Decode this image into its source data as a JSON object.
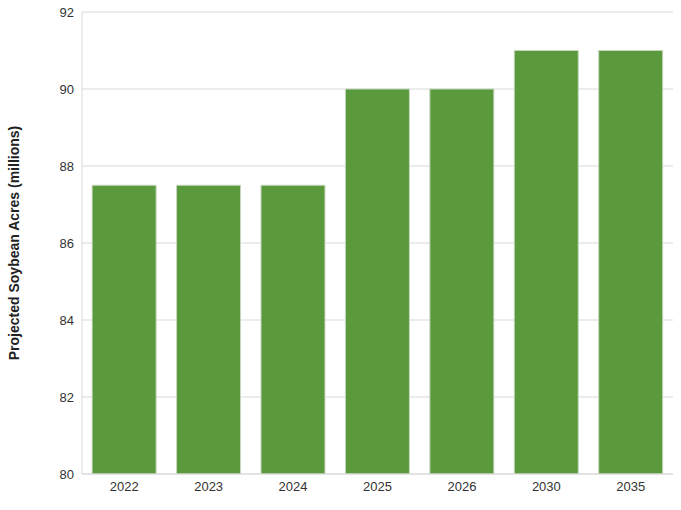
{
  "chart_data": {
    "type": "bar",
    "y_label": "Projected Soybean Acres (millions)",
    "categories": [
      "2022",
      "2023",
      "2024",
      "2025",
      "2026",
      "2030",
      "2035"
    ],
    "values": [
      87.5,
      87.5,
      87.5,
      90,
      90,
      91,
      91
    ],
    "color": "#5b9a3c",
    "ylim": [
      80,
      92
    ],
    "yticks": [
      80,
      82,
      84,
      86,
      88,
      90,
      92
    ],
    "grid": true
  }
}
